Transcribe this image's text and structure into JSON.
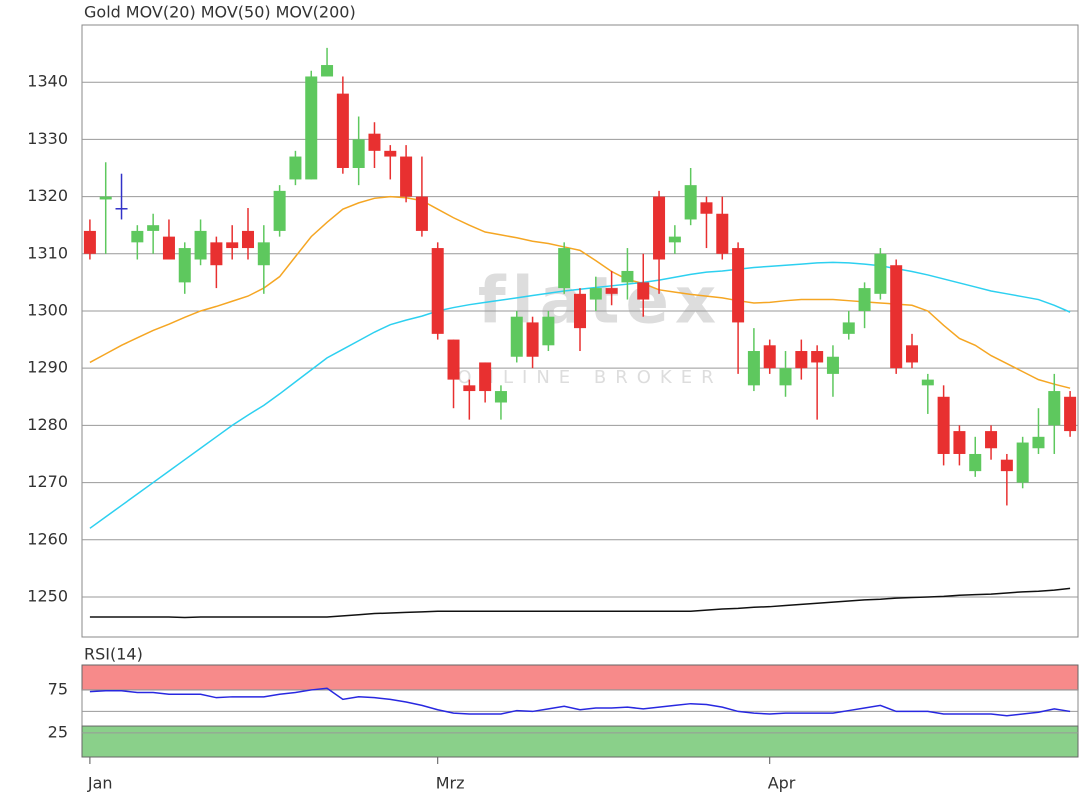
{
  "chart_data": [
    {
      "type": "candlestick",
      "name": "Gold",
      "name_color": "#f05a3c",
      "up_color": "#5ec85e",
      "down_color": "#e83030",
      "doji_color": "#3232c8",
      "watermark": "flatex",
      "watermark_sub": "ONLINE BROKER",
      "categories": [
        "Jan",
        null,
        null,
        null,
        null,
        null,
        null,
        null,
        null,
        null,
        null,
        null,
        null,
        null,
        null,
        null,
        null,
        null,
        null,
        null,
        null,
        null,
        "Mrz",
        null,
        null,
        null,
        null,
        null,
        null,
        null,
        null,
        null,
        null,
        null,
        null,
        null,
        null,
        null,
        null,
        null,
        null,
        null,
        null,
        "Apr",
        null,
        null,
        null,
        null,
        null,
        null,
        null,
        null,
        null,
        null,
        null,
        null,
        null,
        null,
        null,
        null,
        null,
        null,
        null
      ],
      "open": [
        1314,
        1319.5,
        1318,
        1312,
        1314,
        1313,
        1305,
        1309,
        1312,
        1312,
        1314,
        1308,
        1314,
        1323,
        1323,
        1341,
        1338,
        1325,
        1331,
        1328,
        1327,
        1320,
        1311,
        1295,
        1287,
        1291,
        1284,
        1292,
        1298,
        1294,
        1304,
        1303,
        1302,
        1304,
        1305,
        1305,
        1320,
        1312,
        1316,
        1319,
        1317,
        1311,
        1287,
        1294,
        1287,
        1293,
        1293,
        1289,
        1296,
        1300,
        1303,
        1308,
        1294,
        1287,
        1285,
        1279,
        1272,
        1279,
        1274,
        1270,
        1276,
        1280,
        1285
      ],
      "high": [
        1316,
        1326,
        1324,
        1315,
        1317,
        1316,
        1312,
        1316,
        1313,
        1315,
        1318,
        1315,
        1322,
        1328,
        1342,
        1346,
        1341,
        1334,
        1333,
        1329,
        1329,
        1327,
        1312,
        1295,
        1288,
        1291,
        1287,
        1300,
        1299,
        1300,
        1312,
        1304,
        1306,
        1307,
        1311,
        1310,
        1321,
        1315,
        1325,
        1320,
        1320,
        1312,
        1297,
        1295,
        1293,
        1295,
        1294,
        1294,
        1300,
        1305,
        1311,
        1309,
        1296,
        1289,
        1287,
        1280,
        1278,
        1280,
        1275,
        1278,
        1283,
        1289,
        1286
      ],
      "low": [
        1309,
        1310,
        1316,
        1309,
        1310,
        1309,
        1303,
        1308,
        1304,
        1309,
        1309,
        1303,
        1313,
        1322,
        1323,
        1341,
        1324,
        1322,
        1325,
        1323,
        1319,
        1313,
        1295,
        1283,
        1281,
        1284,
        1281,
        1291,
        1290,
        1293,
        1303,
        1293,
        1300,
        1301,
        1302,
        1299,
        1303,
        1310,
        1315,
        1311,
        1309,
        1289,
        1286,
        1289,
        1285,
        1288,
        1281,
        1285,
        1295,
        1297,
        1302,
        1289,
        1290,
        1282,
        1273,
        1273,
        1271,
        1274,
        1266,
        1269,
        1275,
        1275,
        1278
      ],
      "close": [
        1310,
        1320,
        1318,
        1314,
        1315,
        1309,
        1311,
        1314,
        1308,
        1311,
        1311,
        1312,
        1321,
        1327,
        1341,
        1343,
        1325,
        1330,
        1328,
        1327,
        1320,
        1314,
        1296,
        1288,
        1286,
        1286,
        1286,
        1299,
        1292,
        1299,
        1311,
        1297,
        1304,
        1303,
        1307,
        1302,
        1309,
        1313,
        1322,
        1317,
        1310,
        1298,
        1293,
        1290,
        1290,
        1290,
        1291,
        1292,
        1298,
        1304,
        1310,
        1290,
        1291,
        1288,
        1275,
        1275,
        1275,
        1276,
        1272,
        1277,
        1278,
        1286,
        1279
      ],
      "series": [
        {
          "name": "MOV(20)",
          "color": "#f5a623",
          "values": [
            1291,
            1292.5,
            1294,
            1295.3,
            1296.6,
            1297.7,
            1298.9,
            1300,
            1300.8,
            1301.7,
            1302.6,
            1304,
            1306,
            1309.5,
            1313,
            1315.5,
            1317.8,
            1318.9,
            1319.7,
            1320,
            1319.8,
            1319.3,
            1317.8,
            1316.3,
            1315,
            1313.8,
            1313.3,
            1312.8,
            1312.2,
            1311.8,
            1311.2,
            1310.6,
            1308.8,
            1306.9,
            1305.5,
            1304.8,
            1303.7,
            1303.3,
            1302.9,
            1302.6,
            1302.3,
            1301.8,
            1301.4,
            1301.5,
            1301.8,
            1302,
            1302,
            1302,
            1301.8,
            1301.6,
            1301.4,
            1301.2,
            1301,
            1300,
            1297.5,
            1295.2,
            1294,
            1292.2,
            1290.8,
            1289.4,
            1288,
            1287.2,
            1286.5
          ]
        },
        {
          "name": "MOV(50)",
          "color": "#2dd0f0",
          "values": [
            1262,
            1264,
            1266,
            1268,
            1270,
            1272,
            1274,
            1276,
            1278,
            1280,
            1281.8,
            1283.5,
            1285.5,
            1287.6,
            1289.7,
            1291.8,
            1293.3,
            1294.8,
            1296.3,
            1297.6,
            1298.4,
            1299.1,
            1300,
            1300.6,
            1301.1,
            1301.5,
            1301.9,
            1302.3,
            1302.7,
            1303.1,
            1303.5,
            1303.8,
            1304.1,
            1304.4,
            1304.7,
            1305,
            1305.4,
            1305.9,
            1306.4,
            1306.8,
            1307,
            1307.3,
            1307.6,
            1307.8,
            1308,
            1308.2,
            1308.4,
            1308.5,
            1308.4,
            1308.2,
            1307.9,
            1307.4,
            1306.9,
            1306.3,
            1305.6,
            1304.9,
            1304.2,
            1303.5,
            1303,
            1302.5,
            1302,
            1301,
            1299.8
          ]
        },
        {
          "name": "MOV(200)",
          "color": "#111111",
          "values": [
            1246.5,
            1246.5,
            1246.5,
            1246.5,
            1246.5,
            1246.5,
            1246.4,
            1246.5,
            1246.5,
            1246.5,
            1246.5,
            1246.5,
            1246.5,
            1246.5,
            1246.5,
            1246.5,
            1246.7,
            1246.9,
            1247.1,
            1247.2,
            1247.3,
            1247.4,
            1247.5,
            1247.5,
            1247.5,
            1247.5,
            1247.5,
            1247.5,
            1247.5,
            1247.5,
            1247.5,
            1247.5,
            1247.5,
            1247.5,
            1247.5,
            1247.5,
            1247.5,
            1247.5,
            1247.5,
            1247.7,
            1247.9,
            1248,
            1248.2,
            1248.3,
            1248.5,
            1248.7,
            1248.9,
            1249.1,
            1249.3,
            1249.5,
            1249.6,
            1249.8,
            1249.9,
            1250,
            1250.1,
            1250.3,
            1250.4,
            1250.5,
            1250.7,
            1250.9,
            1251,
            1251.2,
            1251.5
          ]
        }
      ],
      "ylim": [
        1243,
        1350
      ],
      "yticks": [
        1250,
        1260,
        1270,
        1280,
        1290,
        1300,
        1310,
        1320,
        1330,
        1340
      ],
      "grid": true
    },
    {
      "type": "line",
      "series": [
        {
          "name": "RSI(14)",
          "color": "#2828e0",
          "values": [
            73,
            74,
            74,
            72,
            72,
            70,
            70,
            70,
            66,
            67,
            67,
            67,
            70,
            72,
            75,
            77,
            64,
            67,
            66,
            64,
            61,
            57,
            52,
            48,
            47,
            47,
            47,
            51,
            50,
            53,
            56,
            52,
            54,
            54,
            55,
            53,
            55,
            57,
            59,
            58,
            55,
            50,
            48,
            47,
            48,
            48,
            48,
            48,
            51,
            54,
            57,
            50,
            50,
            50,
            47,
            47,
            47,
            47,
            45,
            47,
            49,
            53,
            50
          ]
        }
      ],
      "ylim": [
        -3,
        104
      ],
      "yticks": [
        25,
        75
      ],
      "midline": 50,
      "zones": [
        {
          "from": 75,
          "to": 104,
          "color": "#f78a8a"
        },
        {
          "from": -3,
          "to": 33,
          "color": "#8ad08a"
        }
      ]
    }
  ]
}
